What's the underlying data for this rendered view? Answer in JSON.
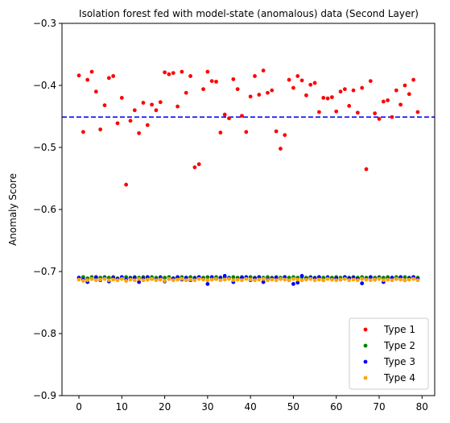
{
  "chart_data": {
    "type": "scatter",
    "title": "Isolation forest fed with model-state (anomalous) data (Second Layer)",
    "xlabel": "",
    "ylabel": "Anomaly Score",
    "xlim": [
      -3.95,
      82.95
    ],
    "ylim": [
      -0.9,
      -0.3
    ],
    "x_ticks": [
      0,
      10,
      20,
      30,
      40,
      50,
      60,
      70,
      80
    ],
    "y_ticks": [
      -0.9,
      -0.8,
      -0.7,
      -0.6,
      -0.5,
      -0.4,
      -0.3
    ],
    "x_tick_labels": [
      "0",
      "10",
      "20",
      "30",
      "40",
      "50",
      "60",
      "70",
      "80"
    ],
    "y_tick_labels": [
      "−0.9",
      "−0.8",
      "−0.7",
      "−0.6",
      "−0.5",
      "−0.4",
      "−0.3"
    ],
    "grid": false,
    "legend_position": "lower right",
    "threshold_line": {
      "y": -0.451,
      "color": "#0000ff",
      "style": "dashed"
    },
    "x": [
      0,
      1,
      2,
      3,
      4,
      5,
      6,
      7,
      8,
      9,
      10,
      11,
      12,
      13,
      14,
      15,
      16,
      17,
      18,
      19,
      20,
      21,
      22,
      23,
      24,
      25,
      26,
      27,
      28,
      29,
      30,
      31,
      32,
      33,
      34,
      35,
      36,
      37,
      38,
      39,
      40,
      41,
      42,
      43,
      44,
      45,
      46,
      47,
      48,
      49,
      50,
      51,
      52,
      53,
      54,
      55,
      56,
      57,
      58,
      59,
      60,
      61,
      62,
      63,
      64,
      65,
      66,
      67,
      68,
      69,
      70,
      71,
      72,
      73,
      74,
      75,
      76,
      77,
      78,
      79
    ],
    "series": [
      {
        "name": "Type 1",
        "color": "#ff0000",
        "values": [
          -0.384,
          -0.475,
          -0.391,
          -0.378,
          -0.41,
          -0.471,
          -0.432,
          -0.388,
          -0.385,
          -0.461,
          -0.42,
          -0.56,
          -0.457,
          -0.44,
          -0.477,
          -0.428,
          -0.464,
          -0.431,
          -0.44,
          -0.427,
          -0.379,
          -0.382,
          -0.38,
          -0.434,
          -0.378,
          -0.412,
          -0.385,
          -0.532,
          -0.527,
          -0.406,
          -0.378,
          -0.393,
          -0.394,
          -0.476,
          -0.447,
          -0.453,
          -0.39,
          -0.406,
          -0.449,
          -0.475,
          -0.418,
          -0.385,
          -0.415,
          -0.376,
          -0.412,
          -0.408,
          -0.474,
          -0.502,
          -0.48,
          -0.391,
          -0.404,
          -0.385,
          -0.392,
          -0.416,
          -0.399,
          -0.396,
          -0.443,
          -0.42,
          -0.421,
          -0.419,
          -0.442,
          -0.41,
          -0.406,
          -0.433,
          -0.408,
          -0.444,
          -0.404,
          -0.535,
          -0.393,
          -0.445,
          -0.454,
          -0.426,
          -0.424,
          -0.451,
          -0.408,
          -0.431,
          -0.4,
          -0.414,
          -0.391,
          -0.443
        ]
      },
      {
        "name": "Type 2",
        "color": "#008000",
        "values": [
          -0.71,
          -0.709,
          -0.711,
          -0.709,
          -0.71,
          -0.71,
          -0.709,
          -0.71,
          -0.709,
          -0.711,
          -0.71,
          -0.709,
          -0.71,
          -0.709,
          -0.71,
          -0.709,
          -0.71,
          -0.709,
          -0.71,
          -0.709,
          -0.71,
          -0.709,
          -0.711,
          -0.71,
          -0.709,
          -0.71,
          -0.709,
          -0.71,
          -0.709,
          -0.71,
          -0.709,
          -0.71,
          -0.709,
          -0.71,
          -0.709,
          -0.71,
          -0.709,
          -0.71,
          -0.709,
          -0.71,
          -0.709,
          -0.71,
          -0.709,
          -0.71,
          -0.709,
          -0.71,
          -0.709,
          -0.71,
          -0.709,
          -0.71,
          -0.709,
          -0.71,
          -0.709,
          -0.71,
          -0.709,
          -0.71,
          -0.709,
          -0.71,
          -0.709,
          -0.71,
          -0.709,
          -0.71,
          -0.709,
          -0.71,
          -0.709,
          -0.71,
          -0.709,
          -0.71,
          -0.709,
          -0.71,
          -0.709,
          -0.71,
          -0.709,
          -0.71,
          -0.709,
          -0.71,
          -0.709,
          -0.71,
          -0.709,
          -0.71
        ]
      },
      {
        "name": "Type 3",
        "color": "#0000ff",
        "values": [
          -0.71,
          -0.713,
          -0.717,
          -0.712,
          -0.709,
          -0.714,
          -0.711,
          -0.716,
          -0.71,
          -0.712,
          -0.709,
          -0.713,
          -0.711,
          -0.71,
          -0.717,
          -0.711,
          -0.709,
          -0.712,
          -0.713,
          -0.71,
          -0.716,
          -0.712,
          -0.711,
          -0.709,
          -0.713,
          -0.71,
          -0.714,
          -0.711,
          -0.709,
          -0.712,
          -0.72,
          -0.709,
          -0.712,
          -0.71,
          -0.707,
          -0.711,
          -0.717,
          -0.712,
          -0.71,
          -0.709,
          -0.714,
          -0.711,
          -0.709,
          -0.717,
          -0.713,
          -0.711,
          -0.71,
          -0.712,
          -0.709,
          -0.714,
          -0.72,
          -0.718,
          -0.707,
          -0.712,
          -0.71,
          -0.711,
          -0.709,
          -0.714,
          -0.71,
          -0.712,
          -0.711,
          -0.713,
          -0.709,
          -0.711,
          -0.71,
          -0.712,
          -0.719,
          -0.712,
          -0.709,
          -0.713,
          -0.711,
          -0.717,
          -0.712,
          -0.71,
          -0.712,
          -0.709,
          -0.714,
          -0.711,
          -0.709,
          -0.712
        ]
      },
      {
        "name": "Type 4",
        "color": "#ffa500",
        "values": [
          -0.713,
          -0.715,
          -0.714,
          -0.712,
          -0.714,
          -0.713,
          -0.712,
          -0.714,
          -0.713,
          -0.714,
          -0.712,
          -0.715,
          -0.713,
          -0.714,
          -0.712,
          -0.714,
          -0.713,
          -0.712,
          -0.714,
          -0.713,
          -0.715,
          -0.712,
          -0.714,
          -0.713,
          -0.712,
          -0.714,
          -0.713,
          -0.714,
          -0.712,
          -0.713,
          -0.714,
          -0.713,
          -0.712,
          -0.714,
          -0.713,
          -0.712,
          -0.714,
          -0.713,
          -0.714,
          -0.712,
          -0.713,
          -0.714,
          -0.713,
          -0.712,
          -0.714,
          -0.713,
          -0.714,
          -0.712,
          -0.713,
          -0.714,
          -0.712,
          -0.713,
          -0.714,
          -0.713,
          -0.712,
          -0.714,
          -0.713,
          -0.714,
          -0.712,
          -0.713,
          -0.714,
          -0.713,
          -0.712,
          -0.714,
          -0.713,
          -0.714,
          -0.712,
          -0.713,
          -0.714,
          -0.713,
          -0.712,
          -0.714,
          -0.713,
          -0.714,
          -0.712,
          -0.713,
          -0.714,
          -0.713,
          -0.712,
          -0.714
        ]
      }
    ]
  }
}
